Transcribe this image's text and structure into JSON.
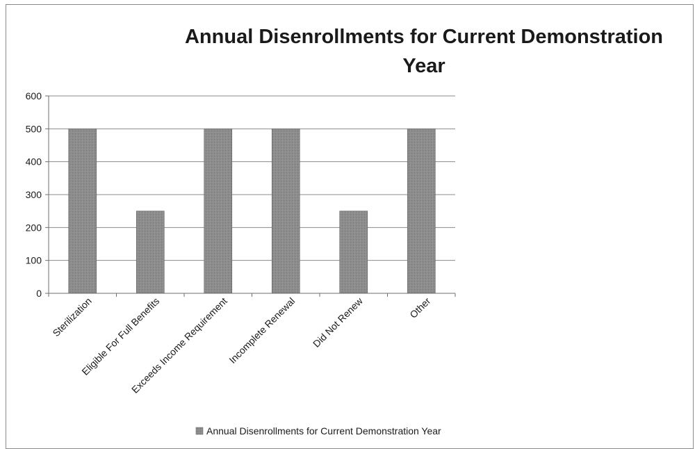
{
  "chart_data": {
    "type": "bar",
    "title": "Annual Disenrollments for Current Demonstration Year",
    "categories": [
      "Sterilization",
      "Eligible For Full Benefits",
      "Exceeds Income Requirement",
      "Incomplete Renewal",
      "Did Not Renew",
      "Other"
    ],
    "series": [
      {
        "name": "Annual Disenrollments for Current Demonstration Year",
        "values": [
          500,
          250,
          500,
          500,
          250,
          500
        ]
      }
    ],
    "ylim": [
      0,
      600
    ],
    "yticks": [
      0,
      100,
      200,
      300,
      400,
      500,
      600
    ],
    "grid": "horizontal",
    "legend": "bottom",
    "colors": {
      "bar": "#8c8c8c",
      "bar_stroke": "#5f5f5f",
      "grid": "#8a8a8a",
      "axis": "#6e6e6e"
    }
  }
}
